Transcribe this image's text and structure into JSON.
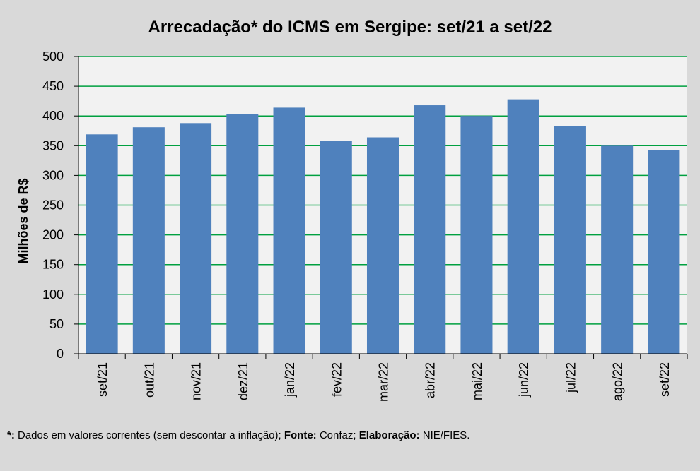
{
  "chart_data": {
    "type": "bar",
    "title": "Arrecadação* do ICMS em Sergipe: set/21 a set/22",
    "xlabel": "",
    "ylabel": "Milhões de R$",
    "categories": [
      "set/21",
      "out/21",
      "nov/21",
      "dez/21",
      "jan/22",
      "fev/22",
      "mar/22",
      "abr/22",
      "mai/22",
      "jun/22",
      "jul/22",
      "ago/22",
      "set/22"
    ],
    "values": [
      369,
      381,
      388,
      403,
      414,
      358,
      364,
      418,
      400,
      428,
      383,
      350,
      343
    ],
    "ylim": [
      0,
      500
    ],
    "yticks": [
      0,
      50,
      100,
      150,
      200,
      250,
      300,
      350,
      400,
      450,
      500
    ],
    "grid": true,
    "legend": "none",
    "colors": {
      "bar": "#4f81bd",
      "grid": "#00a040",
      "plot_background": "#f2f2f2",
      "page_background": "#d9d9d9",
      "axis": "#000000"
    }
  },
  "footnote": {
    "marker": "*:",
    "note": " Dados em valores correntes (sem descontar a inflação); ",
    "source_label": "Fonte:",
    "source": " Confaz; ",
    "credit_label": "Elaboração:",
    "credit": " NIE/FIES."
  }
}
